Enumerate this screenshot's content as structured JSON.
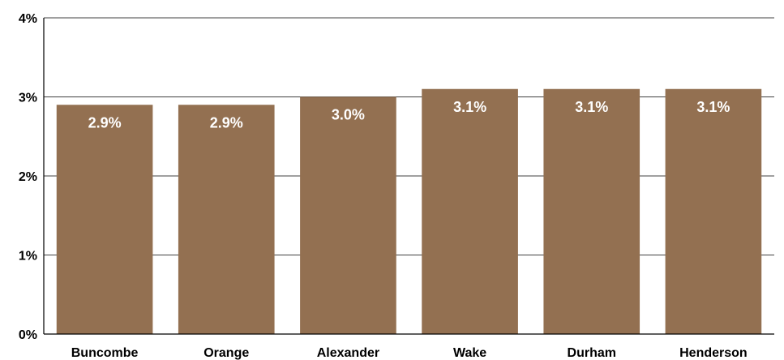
{
  "chart_data": {
    "type": "bar",
    "title": "",
    "xlabel": "",
    "ylabel": "",
    "categories": [
      "Buncombe",
      "Orange",
      "Alexander",
      "Wake",
      "Durham",
      "Henderson"
    ],
    "values": [
      2.9,
      2.9,
      3.0,
      3.1,
      3.1,
      3.1
    ],
    "data_labels": [
      "2.9%",
      "2.9%",
      "3.0%",
      "3.1%",
      "3.1%",
      "3.1%"
    ],
    "ylim": [
      0,
      4
    ],
    "yticks": [
      0,
      1,
      2,
      3,
      4
    ],
    "ytick_labels": [
      "0%",
      "1%",
      "2%",
      "3%",
      "4%"
    ],
    "grid": true,
    "legend": "none",
    "bar_color": "#937051",
    "data_label_color": "#ffffff"
  }
}
